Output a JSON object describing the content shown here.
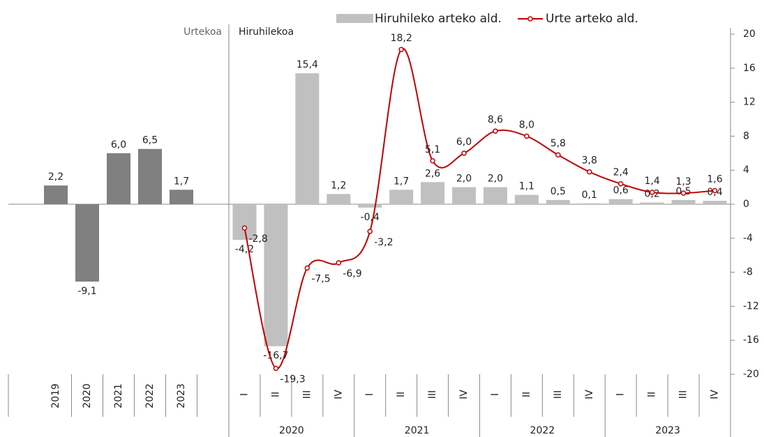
{
  "chart_data": {
    "type": "combo",
    "ylim": [
      -20,
      20
    ],
    "yticks": [
      -20,
      -16,
      -12,
      -8,
      -4,
      0,
      4,
      8,
      12,
      16,
      20
    ],
    "annual": {
      "label": "Urtekoa",
      "categories": [
        "2019",
        "2020",
        "2021",
        "2022",
        "2023"
      ],
      "values": [
        2.2,
        -9.1,
        6.0,
        6.5,
        1.7
      ],
      "value_labels": [
        "2,2",
        "-9,1",
        "6,0",
        "6,5",
        "1,7"
      ],
      "color": "#808080"
    },
    "quarterly": {
      "label": "Hiruhilekoa",
      "categories": [
        "I",
        "II",
        "III",
        "IV",
        "I",
        "II",
        "III",
        "IV",
        "I",
        "II",
        "III",
        "IV",
        "I",
        "II",
        "III",
        "IV"
      ],
      "groups": [
        "2020",
        "2021",
        "2022",
        "2023"
      ],
      "series": [
        {
          "name": "Hiruhileko arteko ald.",
          "type": "bar",
          "color": "#c0c0c0",
          "values": [
            -4.2,
            -16.7,
            15.4,
            1.2,
            -0.4,
            1.7,
            2.6,
            2.0,
            2.0,
            1.1,
            0.5,
            0.1,
            0.6,
            0.2,
            0.5,
            0.4
          ],
          "value_labels": [
            "-4,2",
            "-16,7",
            "15,4",
            "1,2",
            "-0,4",
            "1,7",
            "2,6",
            "2,0",
            "2,0",
            "1,1",
            "0,5",
            "0,1",
            "0,6",
            "0,2",
            "0,5",
            "0,4"
          ]
        },
        {
          "name": "Urte arteko ald.",
          "type": "line",
          "color": "#c00000",
          "values": [
            -2.8,
            -19.3,
            -7.5,
            -6.9,
            -3.2,
            18.2,
            5.1,
            6.0,
            8.6,
            8.0,
            5.8,
            3.8,
            2.4,
            1.4,
            1.3,
            1.6
          ],
          "value_labels": [
            "-2,8",
            "-19,3",
            "-7,5",
            "-6,9",
            "-3,2",
            "18,2",
            "5,1",
            "6,0",
            "8,6",
            "8,0",
            "5,8",
            "3,8",
            "2,4",
            "1,4",
            "1,3",
            "1,6"
          ]
        }
      ]
    }
  }
}
